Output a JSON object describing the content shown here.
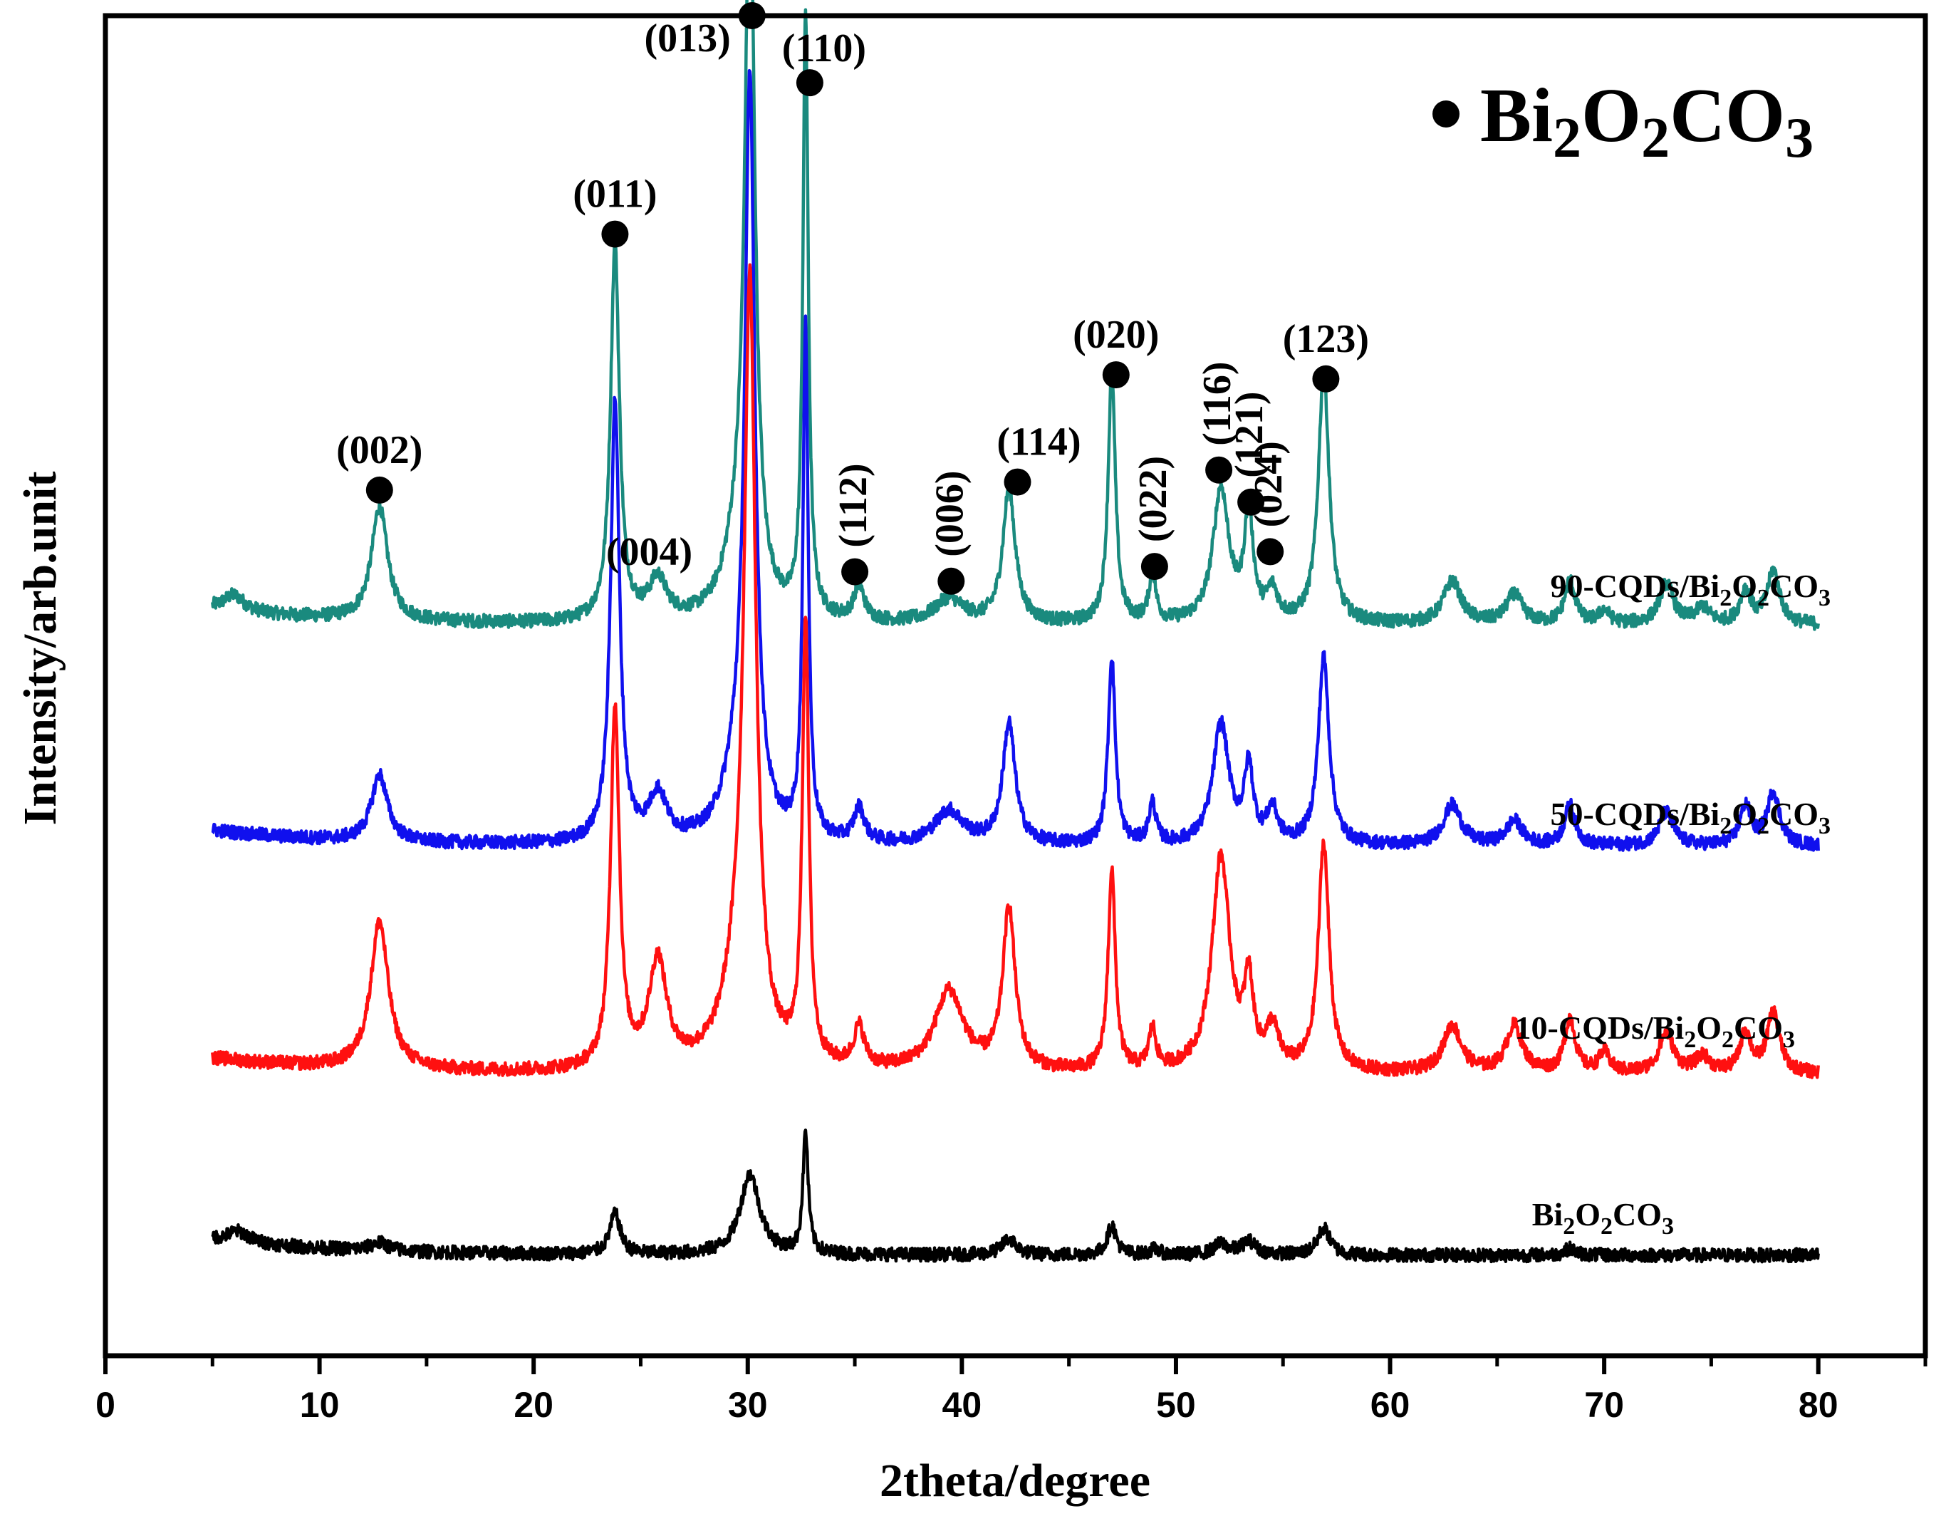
{
  "chart_data": {
    "type": "line",
    "title": "",
    "xlabel": "2theta/degree",
    "ylabel": "Intensity/arb.unit",
    "xlim": [
      0,
      85
    ],
    "ylim": [
      0,
      1.0
    ],
    "y_ticks_shown": false,
    "x_ticks": [
      0,
      10,
      20,
      30,
      40,
      50,
      60,
      70,
      80
    ],
    "x_tick_labels": [
      "0",
      "10",
      "20",
      "30",
      "40",
      "50",
      "60",
      "70",
      "80"
    ],
    "legend": {
      "marker": "filled-circle",
      "label": "● Bi2O2CO3",
      "formula": {
        "base": "Bi",
        "n1": "2",
        "mid": "O",
        "n2": "2",
        "tail": "CO",
        "n3": "3"
      },
      "placement": "top-right"
    },
    "series": [
      {
        "name": "90-CQDs/Bi2O2CO3",
        "label": {
          "prefix": "90-CQDs/Bi",
          "s1": "2",
          "mid": "O",
          "s2": "2",
          "tail": "CO",
          "s3": "3"
        },
        "color": "#1a8a7e",
        "baseline": 0.545,
        "range": [
          5,
          80
        ],
        "peaks": [
          {
            "x": 6.0,
            "h": 0.012,
            "w": 0.6
          },
          {
            "x": 12.8,
            "h": 0.085,
            "w": 0.45
          },
          {
            "x": 23.8,
            "h": 0.28,
            "w": 0.25
          },
          {
            "x": 25.8,
            "h": 0.03,
            "w": 0.5
          },
          {
            "x": 30.1,
            "h": 0.53,
            "w": 0.28
          },
          {
            "x": 29.6,
            "h": 0.05,
            "w": 0.8
          },
          {
            "x": 32.7,
            "h": 0.45,
            "w": 0.15
          },
          {
            "x": 35.2,
            "h": 0.025,
            "w": 0.3
          },
          {
            "x": 39.4,
            "h": 0.018,
            "w": 0.8
          },
          {
            "x": 42.2,
            "h": 0.1,
            "w": 0.35
          },
          {
            "x": 47.0,
            "h": 0.19,
            "w": 0.2
          },
          {
            "x": 48.9,
            "h": 0.035,
            "w": 0.2
          },
          {
            "x": 52.1,
            "h": 0.1,
            "w": 0.45
          },
          {
            "x": 53.4,
            "h": 0.08,
            "w": 0.25
          },
          {
            "x": 54.5,
            "h": 0.022,
            "w": 0.3
          },
          {
            "x": 56.9,
            "h": 0.19,
            "w": 0.3
          },
          {
            "x": 62.9,
            "h": 0.032,
            "w": 0.5
          },
          {
            "x": 65.8,
            "h": 0.022,
            "w": 0.45
          },
          {
            "x": 68.4,
            "h": 0.032,
            "w": 0.3
          },
          {
            "x": 70.0,
            "h": 0.01,
            "w": 0.3
          },
          {
            "x": 72.9,
            "h": 0.03,
            "w": 0.4
          },
          {
            "x": 74.6,
            "h": 0.012,
            "w": 0.4
          },
          {
            "x": 76.6,
            "h": 0.025,
            "w": 0.3
          },
          {
            "x": 77.9,
            "h": 0.04,
            "w": 0.35
          }
        ]
      },
      {
        "name": "50-CQDs/Bi2O2CO3",
        "label": {
          "prefix": "50-CQDs/Bi",
          "s1": "2",
          "mid": "O",
          "s2": "2",
          "tail": "CO",
          "s3": "3"
        },
        "color": "#1010ee",
        "baseline": 0.38,
        "range": [
          5,
          80
        ],
        "peaks": [
          {
            "x": 12.8,
            "h": 0.05,
            "w": 0.45
          },
          {
            "x": 23.8,
            "h": 0.33,
            "w": 0.25
          },
          {
            "x": 25.8,
            "h": 0.035,
            "w": 0.5
          },
          {
            "x": 30.1,
            "h": 0.54,
            "w": 0.28
          },
          {
            "x": 29.6,
            "h": 0.05,
            "w": 0.8
          },
          {
            "x": 32.7,
            "h": 0.38,
            "w": 0.15
          },
          {
            "x": 35.2,
            "h": 0.025,
            "w": 0.3
          },
          {
            "x": 39.4,
            "h": 0.025,
            "w": 0.8
          },
          {
            "x": 42.2,
            "h": 0.09,
            "w": 0.35
          },
          {
            "x": 47.0,
            "h": 0.14,
            "w": 0.2
          },
          {
            "x": 48.9,
            "h": 0.03,
            "w": 0.2
          },
          {
            "x": 52.1,
            "h": 0.09,
            "w": 0.45
          },
          {
            "x": 53.4,
            "h": 0.055,
            "w": 0.25
          },
          {
            "x": 54.5,
            "h": 0.025,
            "w": 0.3
          },
          {
            "x": 56.9,
            "h": 0.14,
            "w": 0.3
          },
          {
            "x": 62.9,
            "h": 0.03,
            "w": 0.5
          },
          {
            "x": 65.8,
            "h": 0.018,
            "w": 0.45
          },
          {
            "x": 68.4,
            "h": 0.03,
            "w": 0.3
          },
          {
            "x": 72.9,
            "h": 0.025,
            "w": 0.4
          },
          {
            "x": 76.6,
            "h": 0.03,
            "w": 0.3
          },
          {
            "x": 77.9,
            "h": 0.04,
            "w": 0.35
          }
        ]
      },
      {
        "name": "10-CQDs/Bi2O2CO3",
        "label": {
          "prefix": "10-CQDs/Bi",
          "s1": "2",
          "mid": "O",
          "s2": "2",
          "tail": "CO",
          "s3": "3"
        },
        "color": "#ff1010",
        "baseline": 0.21,
        "range": [
          5,
          80
        ],
        "peaks": [
          {
            "x": 12.8,
            "h": 0.11,
            "w": 0.5
          },
          {
            "x": 23.8,
            "h": 0.27,
            "w": 0.25
          },
          {
            "x": 25.8,
            "h": 0.08,
            "w": 0.5
          },
          {
            "x": 30.1,
            "h": 0.55,
            "w": 0.32
          },
          {
            "x": 29.6,
            "h": 0.06,
            "w": 0.9
          },
          {
            "x": 32.7,
            "h": 0.33,
            "w": 0.18
          },
          {
            "x": 35.2,
            "h": 0.03,
            "w": 0.3
          },
          {
            "x": 39.4,
            "h": 0.06,
            "w": 0.8
          },
          {
            "x": 42.2,
            "h": 0.12,
            "w": 0.35
          },
          {
            "x": 47.0,
            "h": 0.15,
            "w": 0.2
          },
          {
            "x": 48.9,
            "h": 0.03,
            "w": 0.2
          },
          {
            "x": 52.1,
            "h": 0.16,
            "w": 0.5
          },
          {
            "x": 53.4,
            "h": 0.06,
            "w": 0.25
          },
          {
            "x": 54.5,
            "h": 0.03,
            "w": 0.35
          },
          {
            "x": 56.9,
            "h": 0.17,
            "w": 0.3
          },
          {
            "x": 62.9,
            "h": 0.035,
            "w": 0.5
          },
          {
            "x": 65.8,
            "h": 0.035,
            "w": 0.45
          },
          {
            "x": 68.4,
            "h": 0.04,
            "w": 0.3
          },
          {
            "x": 70.0,
            "h": 0.015,
            "w": 0.3
          },
          {
            "x": 72.9,
            "h": 0.03,
            "w": 0.4
          },
          {
            "x": 74.6,
            "h": 0.012,
            "w": 0.4
          },
          {
            "x": 76.6,
            "h": 0.03,
            "w": 0.3
          },
          {
            "x": 77.9,
            "h": 0.045,
            "w": 0.35
          }
        ]
      },
      {
        "name": "Bi2O2CO3",
        "label": {
          "prefix": "Bi",
          "s1": "2",
          "mid": "O",
          "s2": "2",
          "tail": "CO",
          "s3": "3"
        },
        "color": "#000000",
        "baseline": 0.075,
        "range": [
          5,
          80
        ],
        "peaks": [
          {
            "x": 6.2,
            "h": 0.008,
            "w": 0.6
          },
          {
            "x": 12.8,
            "h": 0.006,
            "w": 0.5
          },
          {
            "x": 23.8,
            "h": 0.03,
            "w": 0.3
          },
          {
            "x": 30.1,
            "h": 0.06,
            "w": 0.55
          },
          {
            "x": 32.7,
            "h": 0.09,
            "w": 0.15
          },
          {
            "x": 42.2,
            "h": 0.012,
            "w": 0.4
          },
          {
            "x": 47.0,
            "h": 0.022,
            "w": 0.25
          },
          {
            "x": 49.0,
            "h": 0.004,
            "w": 0.3
          },
          {
            "x": 52.1,
            "h": 0.008,
            "w": 0.4
          },
          {
            "x": 53.4,
            "h": 0.01,
            "w": 0.4
          },
          {
            "x": 56.9,
            "h": 0.02,
            "w": 0.35
          },
          {
            "x": 68.4,
            "h": 0.005,
            "w": 0.3
          }
        ]
      }
    ],
    "annotations": [
      {
        "label": "(002)",
        "marker_x": 12.8,
        "marker_y": 0.646,
        "rotated": false
      },
      {
        "label": "(011)",
        "marker_x": 23.8,
        "marker_y": 0.837,
        "rotated": false
      },
      {
        "label": "(004)",
        "marker_x": null,
        "marker_y": null,
        "rotated": false,
        "text_x": 25.4,
        "text_y": 0.59
      },
      {
        "label": "(013)",
        "marker_x": 30.2,
        "marker_y": 1.0,
        "rotated": false
      },
      {
        "label": "(110)",
        "marker_x": 32.9,
        "marker_y": 0.95,
        "rotated": false
      },
      {
        "label": "(112)",
        "marker_x": 35.0,
        "marker_y": 0.585,
        "rotated": true
      },
      {
        "label": "(006)",
        "marker_x": 39.5,
        "marker_y": 0.578,
        "rotated": true
      },
      {
        "label": "(114)",
        "marker_x": 42.6,
        "marker_y": 0.652,
        "rotated": false
      },
      {
        "label": "(020)",
        "marker_x": 47.2,
        "marker_y": 0.732,
        "rotated": false
      },
      {
        "label": "(022)",
        "marker_x": 49.0,
        "marker_y": 0.589,
        "rotated": true
      },
      {
        "label": "(116)",
        "marker_x": 52.0,
        "marker_y": 0.661,
        "rotated": true
      },
      {
        "label": "(121)",
        "marker_x": 53.5,
        "marker_y": 0.637,
        "rotated": true
      },
      {
        "label": "(024)",
        "marker_x": 54.4,
        "marker_y": 0.6,
        "rotated": true
      },
      {
        "label": "(123)",
        "marker_x": 57.0,
        "marker_y": 0.729,
        "rotated": false
      }
    ]
  }
}
